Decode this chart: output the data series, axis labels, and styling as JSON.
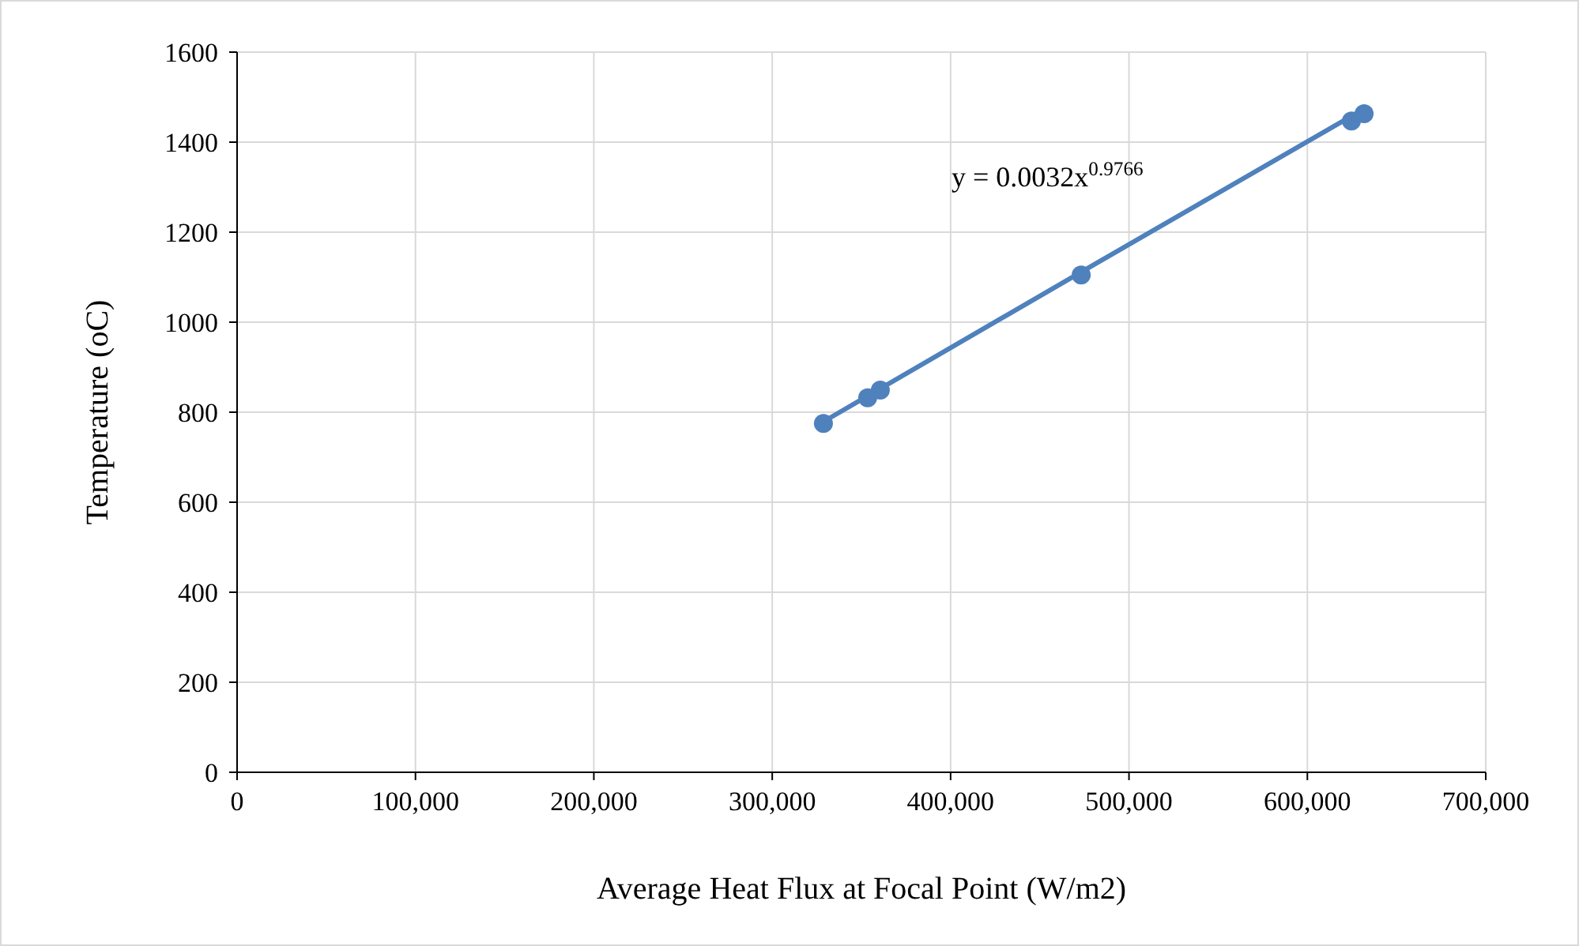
{
  "chart_data": {
    "type": "scatter",
    "xlabel": "Average Heat Flux at Focal Point (W/m2)",
    "ylabel": "Temperature (oC)",
    "series": [
      {
        "marker": "circle",
        "color": "#4f81bd",
        "x": [
          328700,
          353500,
          360600,
          473200,
          624700,
          631800
        ],
        "values": [
          775,
          832,
          849,
          1105,
          1447,
          1463
        ]
      },
      {
        "type": "line",
        "marker": "none",
        "color": "#4f81bd",
        "x": [
          328700,
          480000,
          631800
        ],
        "values": [
          779,
          1127,
          1474
        ]
      }
    ],
    "annotations": [
      "y = 0.0032x$^{0.9766}$"
    ],
    "xlim": [
      0,
      700000
    ],
    "xticks": [
      0,
      {
        "value": 100000,
        "label": "100,000"
      },
      {
        "value": 200000,
        "label": "200,000"
      },
      {
        "value": 300000,
        "label": "300,000"
      },
      {
        "value": 400000,
        "label": "400,000"
      },
      {
        "value": 500000,
        "label": "500,000"
      },
      {
        "value": 600000,
        "label": "600,000"
      },
      {
        "value": 700000,
        "label": "700,000"
      }
    ],
    "ylim": [
      0,
      1600
    ],
    "yticks": [
      0,
      200,
      400,
      600,
      800,
      1000,
      1200,
      1400,
      1600
    ],
    "grid": true,
    "line_style": "solid"
  }
}
